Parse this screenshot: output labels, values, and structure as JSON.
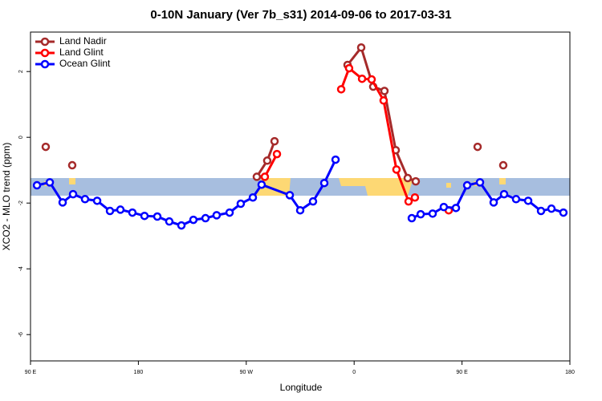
{
  "chart_data": {
    "type": "line",
    "title": "0-10N January (Ver 7b_s31)   2014-09-06 to 2017-03-31",
    "x_label": "Longitude",
    "y_label": "XCO2 - MLO trend (ppm)",
    "xlim": [
      90,
      540
    ],
    "ylim": [
      -6.8,
      3.2
    ],
    "xticks": [
      {
        "value": 90,
        "label": "90 E"
      },
      180,
      {
        "value": 270,
        "label": "90 W"
      },
      {
        "value": 360,
        "label": "0"
      },
      {
        "value": 450,
        "label": "90 E"
      },
      {
        "value": 540,
        "label": "180"
      }
    ],
    "yticks": [
      2,
      0,
      -2,
      -4,
      -6
    ],
    "legend": "top-left",
    "series": [
      {
        "name": "Land Nadir",
        "color": "#a52a2a",
        "x": [
          102.7,
          null,
          124.8,
          null,
          278.8,
          287.5,
          293.6,
          null,
          354.5,
          365.9,
          375.9,
          385.3,
          394.7,
          404.7,
          411.4,
          null,
          463.0,
          null,
          484.4
        ],
        "values": [
          -0.29,
          null,
          -0.85,
          null,
          -1.2,
          -0.71,
          -0.12,
          null,
          2.2,
          2.73,
          1.54,
          1.41,
          -0.39,
          -1.24,
          -1.34,
          null,
          -0.29,
          null,
          -0.85
        ]
      },
      {
        "name": "Land Glint",
        "color": "#ff0000",
        "x": [
          285.5,
          295.6,
          null,
          349.2,
          355.8,
          366.6,
          374.6,
          384.6,
          395.3,
          405.4,
          410.7,
          null,
          438.9
        ],
        "values": [
          -1.2,
          -0.51,
          null,
          1.46,
          2.1,
          1.78,
          1.76,
          1.12,
          -0.98,
          -1.95,
          -1.83,
          null,
          -2.22
        ]
      },
      {
        "name": "Ocean Glint",
        "color": "#0000ff",
        "x": [
          95.4,
          106.1,
          116.8,
          125.5,
          135.5,
          145.6,
          156.3,
          165.0,
          175.0,
          185.1,
          195.8,
          205.8,
          215.9,
          225.9,
          236.0,
          245.3,
          256.1,
          265.4,
          275.5,
          282.8,
          306.3,
          315.0,
          325.7,
          335.1,
          344.5,
          null,
          408.1,
          415.5,
          425.5,
          434.8,
          444.9,
          454.3,
          465.0,
          476.4,
          485.1,
          495.1,
          505.2,
          515.9,
          524.6,
          534.6
        ],
        "values": [
          -1.46,
          -1.37,
          -1.98,
          -1.73,
          -1.88,
          -1.93,
          -2.24,
          -2.2,
          -2.29,
          -2.39,
          -2.41,
          -2.56,
          -2.68,
          -2.51,
          -2.46,
          -2.37,
          -2.29,
          -2.02,
          -1.83,
          -1.44,
          -1.76,
          -2.22,
          -1.95,
          -1.39,
          -0.68,
          null,
          -2.46,
          -2.34,
          -2.32,
          -2.12,
          -2.15,
          -1.46,
          -1.37,
          -1.98,
          -1.73,
          -1.88,
          -1.93,
          -2.24,
          -2.17,
          -2.29
        ]
      }
    ]
  }
}
